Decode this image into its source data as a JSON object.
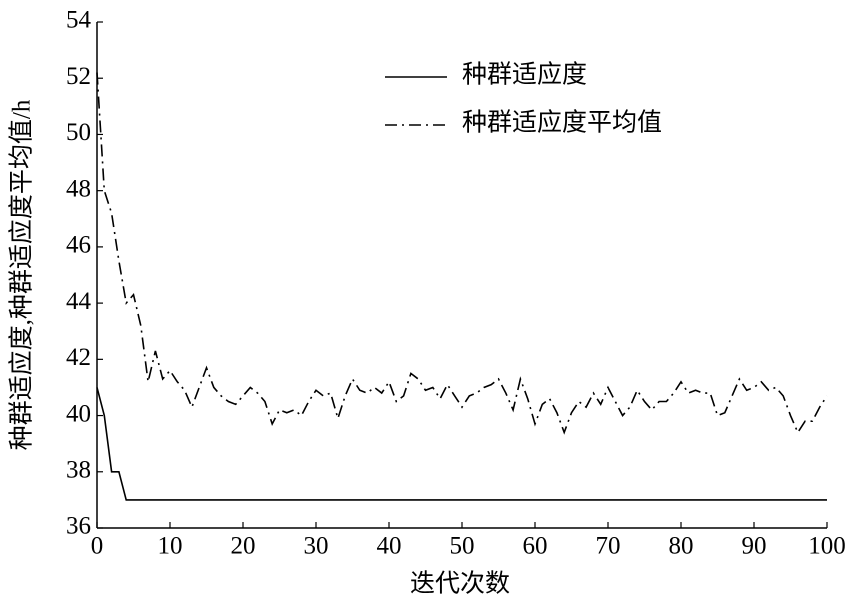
{
  "chart_data": {
    "type": "line",
    "x_label": "迭代次数",
    "y_label": "种群适应度,种群适应度平均值/h",
    "x": [
      0,
      1,
      2,
      3,
      4,
      5,
      6,
      7,
      8,
      9,
      10,
      11,
      12,
      13,
      14,
      15,
      16,
      17,
      18,
      19,
      20,
      21,
      22,
      23,
      24,
      25,
      26,
      27,
      28,
      29,
      30,
      31,
      32,
      33,
      34,
      35,
      36,
      37,
      38,
      39,
      40,
      41,
      42,
      43,
      44,
      45,
      46,
      47,
      48,
      49,
      50,
      51,
      52,
      53,
      54,
      55,
      56,
      57,
      58,
      59,
      60,
      61,
      62,
      63,
      64,
      65,
      66,
      67,
      68,
      69,
      70,
      71,
      72,
      73,
      74,
      75,
      76,
      77,
      78,
      79,
      80,
      81,
      82,
      83,
      84,
      85,
      86,
      87,
      88,
      89,
      90,
      91,
      92,
      93,
      94,
      95,
      96,
      97,
      98,
      99,
      100
    ],
    "series": [
      {
        "name": "种群适应度",
        "color": "#000000",
        "dash": "solid",
        "values": [
          41,
          40,
          38,
          38,
          37,
          37,
          37,
          37,
          37,
          37,
          37,
          37,
          37,
          37,
          37,
          37,
          37,
          37,
          37,
          37,
          37,
          37,
          37,
          37,
          37,
          37,
          37,
          37,
          37,
          37,
          37,
          37,
          37,
          37,
          37,
          37,
          37,
          37,
          37,
          37,
          37,
          37,
          37,
          37,
          37,
          37,
          37,
          37,
          37,
          37,
          37,
          37,
          37,
          37,
          37,
          37,
          37,
          37,
          37,
          37,
          37,
          37,
          37,
          37,
          37,
          37,
          37,
          37,
          37,
          37,
          37,
          37,
          37,
          37,
          37,
          37,
          37,
          37,
          37,
          37,
          37,
          37,
          37,
          37,
          37,
          37,
          37,
          37,
          37,
          37,
          37,
          37,
          37,
          37,
          37,
          37,
          37,
          37,
          37,
          37,
          37
        ]
      },
      {
        "name": "种群适应度平均值",
        "color": "#000000",
        "dash": "dashdot",
        "values": [
          52.2,
          48,
          47.2,
          45.5,
          44,
          44.3,
          43.2,
          41.2,
          42.3,
          41.3,
          41.6,
          41.2,
          40.9,
          40.3,
          41.0,
          41.7,
          41.0,
          40.7,
          40.5,
          40.4,
          40.7,
          41.0,
          40.8,
          40.5,
          39.7,
          40.2,
          40.1,
          40.2,
          40.0,
          40.5,
          40.9,
          40.7,
          40.8,
          39.9,
          40.7,
          41.3,
          40.9,
          40.8,
          41.0,
          40.8,
          41.2,
          40.5,
          40.7,
          41.5,
          41.3,
          40.9,
          41.0,
          40.6,
          41.1,
          40.7,
          40.3,
          40.7,
          40.8,
          41.0,
          41.1,
          41.3,
          40.8,
          40.2,
          41.3,
          40.6,
          39.7,
          40.4,
          40.6,
          40.1,
          39.4,
          40.1,
          40.5,
          40.3,
          40.8,
          40.4,
          41.0,
          40.5,
          40.0,
          40.3,
          40.9,
          40.5,
          40.2,
          40.5,
          40.5,
          40.8,
          41.2,
          40.8,
          40.9,
          40.8,
          40.8,
          40.0,
          40.1,
          40.7,
          41.3,
          40.9,
          41.0,
          41.2,
          40.9,
          41.0,
          40.7,
          40.0,
          39.4,
          39.8,
          39.8,
          40.3,
          40.7
        ]
      }
    ],
    "xlim": [
      0,
      100
    ],
    "xticks": [
      0,
      10,
      20,
      30,
      40,
      50,
      60,
      70,
      80,
      90,
      100
    ],
    "ylim": [
      36,
      54
    ],
    "yticks": [
      36,
      38,
      40,
      42,
      44,
      46,
      48,
      50,
      52,
      54
    ],
    "grid": false,
    "legend": "upper-right"
  }
}
